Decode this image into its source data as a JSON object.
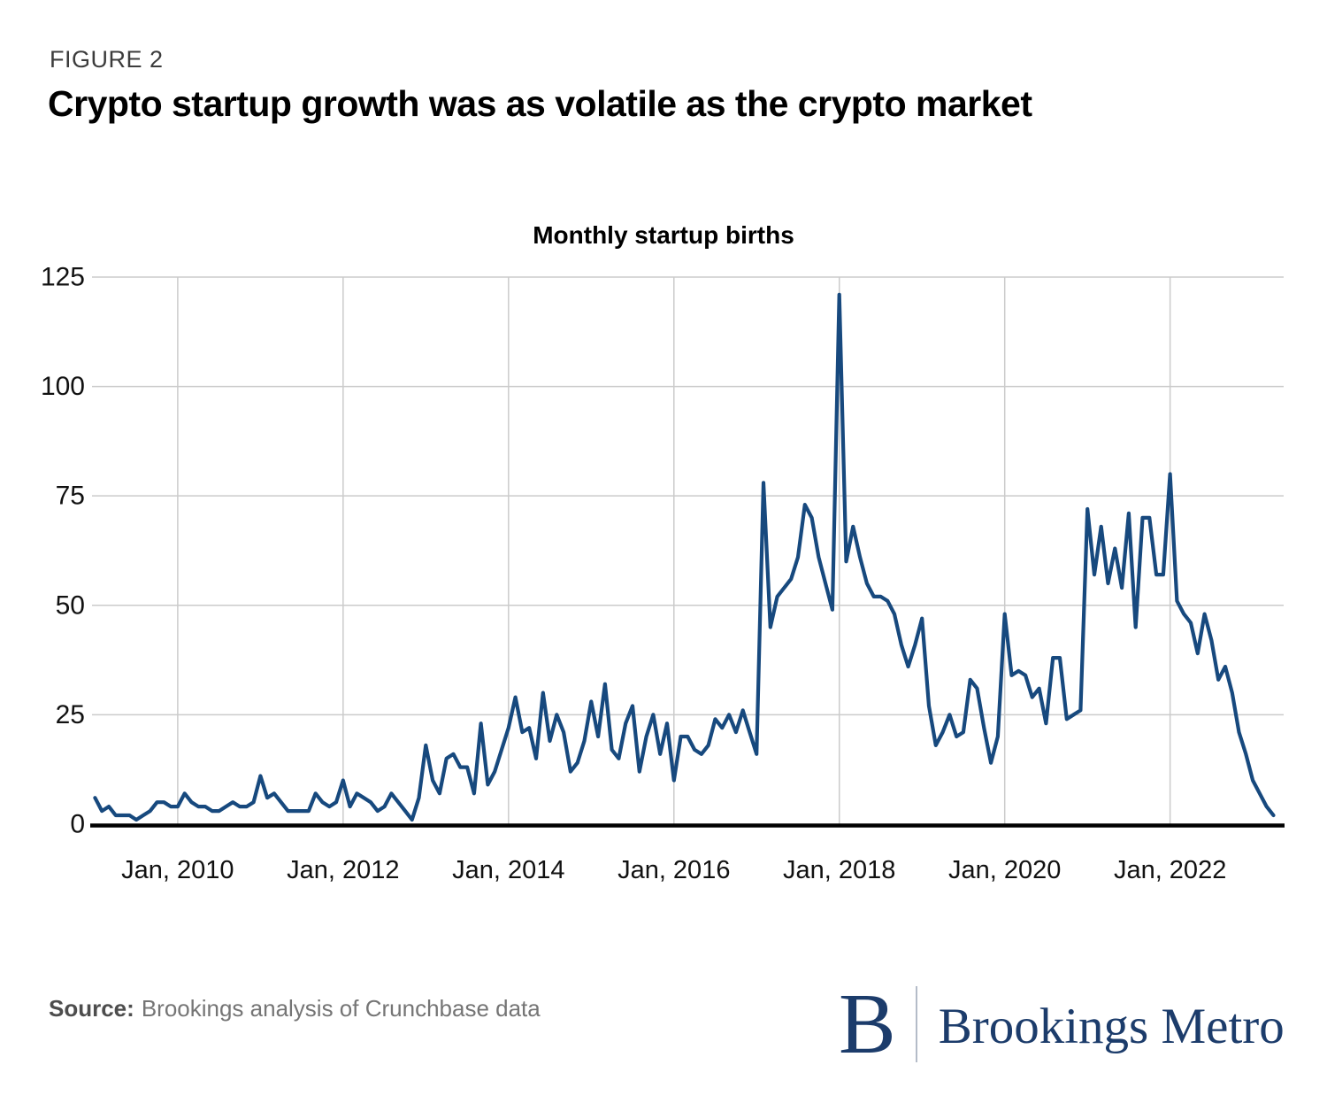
{
  "figure_label": "FIGURE 2",
  "title": "Crypto startup growth was as volatile as the crypto market",
  "chart_data": {
    "type": "line",
    "title": "Monthly startup births",
    "x_start": "2009-01",
    "x_end": "2023-04",
    "frequency": "monthly",
    "x_tick_labels": [
      "Jan, 2010",
      "Jan, 2012",
      "Jan, 2014",
      "Jan, 2016",
      "Jan, 2018",
      "Jan, 2020",
      "Jan, 2022"
    ],
    "y_ticks": [
      0,
      25,
      50,
      75,
      100,
      125
    ],
    "ylim": [
      0,
      125
    ],
    "grid": true,
    "legend": "none",
    "line_color": "#17497e",
    "grid_color": "#cbcbcb",
    "axis_color": "#000000",
    "values": [
      6,
      3,
      4,
      2,
      2,
      2,
      1,
      2,
      3,
      5,
      5,
      4,
      4,
      7,
      5,
      4,
      4,
      3,
      3,
      4,
      5,
      4,
      4,
      5,
      11,
      6,
      7,
      5,
      3,
      3,
      3,
      3,
      7,
      5,
      4,
      5,
      10,
      4,
      7,
      6,
      5,
      3,
      4,
      7,
      5,
      3,
      1,
      6,
      18,
      10,
      7,
      15,
      16,
      13,
      13,
      7,
      23,
      9,
      12,
      17,
      22,
      29,
      21,
      22,
      15,
      30,
      19,
      25,
      21,
      12,
      14,
      19,
      28,
      20,
      32,
      17,
      15,
      23,
      27,
      12,
      20,
      25,
      16,
      23,
      10,
      20,
      20,
      17,
      16,
      18,
      24,
      22,
      25,
      21,
      26,
      21,
      16,
      78,
      45,
      52,
      54,
      56,
      61,
      73,
      70,
      61,
      55,
      49,
      121,
      60,
      68,
      61,
      55,
      52,
      52,
      51,
      48,
      41,
      36,
      41,
      47,
      27,
      18,
      21,
      25,
      20,
      21,
      33,
      31,
      22,
      14,
      20,
      48,
      34,
      35,
      34,
      29,
      31,
      23,
      38,
      38,
      24,
      25,
      26,
      72,
      57,
      68,
      55,
      63,
      54,
      71,
      45,
      70,
      70,
      57,
      57,
      80,
      51,
      48,
      46,
      39,
      48,
      42,
      33,
      36,
      30,
      21,
      16,
      10,
      7,
      4,
      2
    ]
  },
  "source": {
    "label": "Source:",
    "text": "Brookings analysis of Crunchbase data"
  },
  "logo": {
    "initial": "B",
    "wordmark": "Brookings Metro"
  }
}
